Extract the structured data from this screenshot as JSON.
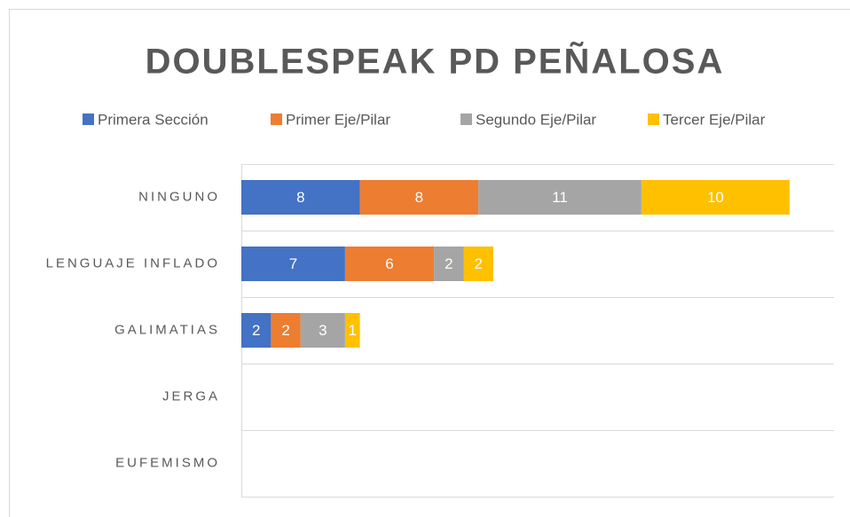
{
  "chart_data": {
    "type": "stacked-hbar",
    "title": "DOUBLESPEAK PD PEÑALOSA",
    "categories": [
      "NINGUNO",
      "LENGUAJE INFLADO",
      "GALIMATIAS",
      "JERGA",
      "EUFEMISMO"
    ],
    "series": [
      {
        "name": "Primera Sección",
        "color": "#4472c4",
        "values": [
          8,
          7,
          2,
          0,
          0
        ]
      },
      {
        "name": "Primer Eje/Pilar",
        "color": "#ed7d31",
        "values": [
          8,
          6,
          2,
          0,
          0
        ]
      },
      {
        "name": "Segundo Eje/Pilar",
        "color": "#a5a5a5",
        "values": [
          11,
          2,
          3,
          0,
          0
        ]
      },
      {
        "name": "Tercer Eje/Pilar",
        "color": "#ffc000",
        "values": [
          10,
          2,
          1,
          0,
          0
        ]
      }
    ],
    "xlim": [
      0,
      40
    ],
    "legend": "top"
  }
}
